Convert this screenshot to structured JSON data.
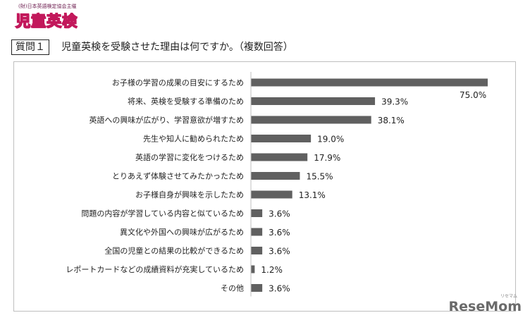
{
  "header": {
    "logo_small": "(財)日本英語検定協会主催",
    "logo_big": "児童英検",
    "question_number": "質問１",
    "question_text": "児童英検を受験させた理由は何ですか。（複数回答）"
  },
  "watermark": {
    "text": "ReseMom",
    "small": "リセマム"
  },
  "colors": {
    "bar": "#606060"
  },
  "chart_data": {
    "type": "bar",
    "orientation": "horizontal",
    "title": "",
    "xlabel": "",
    "ylabel": "",
    "grid": false,
    "legend": "none",
    "xlim": [
      0,
      75
    ],
    "categories": [
      "お子様の学習の成果の目安にするため",
      "将来、英検を受験する準備のため",
      "英語への興味が広がり、学習意欲が増すため",
      "先生や知人に勧められたため",
      "英語の学習に変化をつけるため",
      "とりあえず体験させてみたかったため",
      "お子様自身が興味を示したため",
      "問題の内容が学習している内容と似ているため",
      "異文化や外国への興味が広がるため",
      "全国の児童との結果の比較ができるため",
      "レポートカードなどの成績資料が充実しているため",
      "その他"
    ],
    "values": [
      75.0,
      39.3,
      38.1,
      19.0,
      17.9,
      15.5,
      13.1,
      3.6,
      3.6,
      3.6,
      1.2,
      3.6
    ],
    "value_labels": [
      "75.0%",
      "39.3%",
      "38.1%",
      "19.0%",
      "17.9%",
      "15.5%",
      "13.1%",
      "3.6%",
      "3.6%",
      "3.6%",
      "1.2%",
      "3.6%"
    ]
  }
}
